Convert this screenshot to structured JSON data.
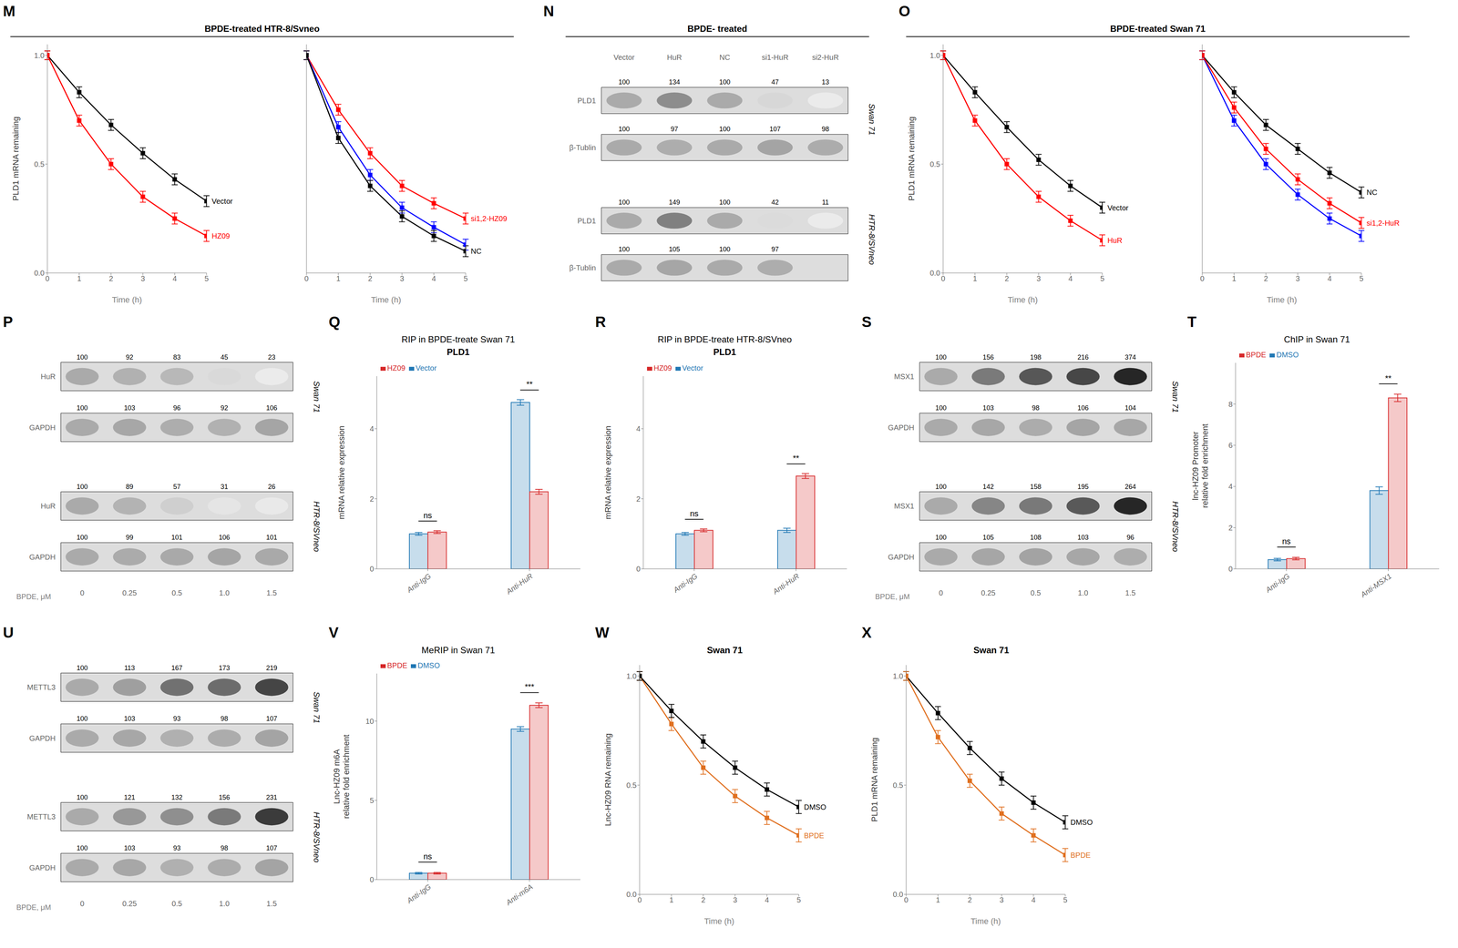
{
  "chart_data": [
    {
      "panel": "M",
      "type": "group",
      "title": "BPDE-treated HTR-8/Svneo",
      "charts": [
        {
          "type": "line",
          "marker": "square",
          "grid": false,
          "xlabel": "Time (h)",
          "ylabel": "PLD1 mRNA remaining",
          "xlim": [
            0,
            5
          ],
          "ylim": [
            0.0,
            1.05
          ],
          "xticks": [
            0,
            1,
            2,
            3,
            4,
            5
          ],
          "yticks": [
            {
              "value": 0,
              "label": "0.0"
            },
            0.5,
            {
              "value": 1,
              "label": "1.0"
            }
          ],
          "x": [
            0,
            1,
            2,
            3,
            4,
            5
          ],
          "series": [
            {
              "name": "Vector",
              "color": "black",
              "values": [
                1.0,
                0.83,
                0.68,
                0.55,
                0.43,
                0.33
              ],
              "errors": [
                0.02,
                0.025,
                0.025,
                0.025,
                0.025,
                0.025
              ]
            },
            {
              "name": "HZ09",
              "color": "red",
              "values": [
                1.0,
                0.7,
                0.5,
                0.35,
                0.25,
                0.17
              ],
              "errors": [
                0.02,
                0.025,
                0.025,
                0.025,
                0.025,
                0.025
              ]
            }
          ]
        },
        {
          "type": "line",
          "marker": "square",
          "grid": false,
          "tick_labels": "x",
          "xlabel": "Time (h)",
          "xlim": [
            0,
            5
          ],
          "ylim": [
            0.0,
            1.05
          ],
          "xticks": [
            0,
            1,
            2,
            3,
            4,
            5
          ],
          "yticks": [
            {
              "value": 0,
              "label": "0.0"
            },
            0.5,
            {
              "value": 1,
              "label": "1.0"
            }
          ],
          "x": [
            0,
            1,
            2,
            3,
            4,
            5
          ],
          "series": [
            {
              "name": "si1,2-HZ09",
              "color": "red",
              "values": [
                1.0,
                0.75,
                0.55,
                0.4,
                0.32,
                0.25
              ],
              "errors": [
                0.02,
                0.025,
                0.025,
                0.025,
                0.025,
                0.025
              ]
            },
            {
              "color": "blue",
              "values": [
                1.0,
                0.67,
                0.45,
                0.3,
                0.21,
                0.13
              ],
              "errors": [
                0.02,
                0.025,
                0.025,
                0.025,
                0.025,
                0.025
              ]
            },
            {
              "name": "NC",
              "color": "black",
              "values": [
                1.0,
                0.62,
                0.4,
                0.26,
                0.17,
                0.1
              ],
              "errors": [
                0.02,
                0.025,
                0.025,
                0.025,
                0.025,
                0.025
              ]
            }
          ]
        }
      ]
    },
    {
      "panel": "N",
      "type": "blot",
      "title": "BPDE- treated",
      "columns": [
        "Vector",
        "HuR",
        "NC",
        "si1-HuR",
        "si2-HuR"
      ],
      "groups": [
        {
          "name": "Swan 71",
          "rows": [
            {
              "label": "PLD1",
              "values": [
                100,
                134,
                100,
                47,
                13
              ]
            },
            {
              "label": "β-Tublin",
              "values": [
                100,
                97,
                100,
                107,
                98
              ]
            }
          ]
        },
        {
          "name": "HTR-8/SVneo",
          "rows": [
            {
              "label": "PLD1",
              "values": [
                100,
                149,
                100,
                42,
                11
              ]
            },
            {
              "label": "β-Tublin",
              "values": [
                100,
                105,
                100,
                97,
                null
              ]
            }
          ]
        }
      ]
    },
    {
      "panel": "O",
      "type": "group",
      "title": "BPDE-treated  Swan 71",
      "charts": [
        {
          "type": "line",
          "marker": "square",
          "grid": false,
          "xlabel": "Time (h)",
          "ylabel": "PLD1 mRNA remaining",
          "xlim": [
            0,
            5
          ],
          "ylim": [
            0.0,
            1.05
          ],
          "xticks": [
            0,
            1,
            2,
            3,
            4,
            5
          ],
          "yticks": [
            {
              "value": 0,
              "label": "0.0"
            },
            0.5,
            {
              "value": 1,
              "label": "1.0"
            }
          ],
          "x": [
            0,
            1,
            2,
            3,
            4,
            5
          ],
          "series": [
            {
              "name": "Vector",
              "color": "black",
              "values": [
                1.0,
                0.83,
                0.67,
                0.52,
                0.4,
                0.3
              ],
              "errors": [
                0.02,
                0.025,
                0.025,
                0.025,
                0.025,
                0.025
              ]
            },
            {
              "name": "HuR",
              "color": "red",
              "values": [
                1.0,
                0.7,
                0.5,
                0.35,
                0.24,
                0.15
              ],
              "errors": [
                0.02,
                0.025,
                0.025,
                0.025,
                0.025,
                0.025
              ]
            }
          ]
        },
        {
          "type": "line",
          "marker": "square",
          "grid": false,
          "tick_labels": "x",
          "xlabel": "Time (h)",
          "xlim": [
            0,
            5
          ],
          "ylim": [
            0.0,
            1.05
          ],
          "xticks": [
            0,
            1,
            2,
            3,
            4,
            5
          ],
          "yticks": [
            {
              "value": 0,
              "label": "0.0"
            },
            0.5,
            {
              "value": 1,
              "label": "1.0"
            }
          ],
          "x": [
            0,
            1,
            2,
            3,
            4,
            5
          ],
          "series": [
            {
              "name": "NC",
              "color": "black",
              "values": [
                1.0,
                0.83,
                0.68,
                0.57,
                0.46,
                0.37
              ],
              "errors": [
                0.02,
                0.025,
                0.025,
                0.025,
                0.025,
                0.025
              ]
            },
            {
              "color": "blue",
              "values": [
                1.0,
                0.7,
                0.5,
                0.36,
                0.25,
                0.17
              ],
              "errors": [
                0.02,
                0.025,
                0.025,
                0.025,
                0.025,
                0.025
              ]
            },
            {
              "name": "si1,2-HuR",
              "color": "red",
              "values": [
                1.0,
                0.76,
                0.57,
                0.43,
                0.32,
                0.23
              ],
              "errors": [
                0.02,
                0.025,
                0.025,
                0.025,
                0.025,
                0.025
              ]
            }
          ]
        }
      ]
    },
    {
      "panel": "P",
      "type": "blot",
      "xlabel": "BPDE, μM",
      "columns": [
        "0",
        "0.25",
        "0.5",
        "1.0",
        "1.5"
      ],
      "groups": [
        {
          "name": "Swan 71",
          "rows": [
            {
              "label": "HuR",
              "values": [
                100,
                92,
                83,
                45,
                23
              ]
            },
            {
              "label": "GAPDH",
              "values": [
                100,
                103,
                96,
                92,
                106
              ]
            }
          ]
        },
        {
          "name": "HTR-8/SVneo",
          "rows": [
            {
              "label": "HuR",
              "values": [
                100,
                89,
                57,
                31,
                26
              ]
            },
            {
              "label": "GAPDH",
              "values": [
                100,
                99,
                101,
                106,
                101
              ]
            }
          ]
        }
      ]
    },
    {
      "panel": "Q",
      "type": "bar",
      "title": "RIP in BPDE-treate Swan 71",
      "subtitle": "PLD1",
      "ylabel": "mRNA relative expression",
      "ylim": [
        0,
        5.5
      ],
      "yticks": [
        0,
        2,
        4
      ],
      "grid": false,
      "legend": "upper left",
      "categories": [
        "Anti-IgG",
        "Anti-HuR"
      ],
      "series": [
        {
          "name": "Vector",
          "color": "#1f77b4",
          "values": [
            1.0,
            4.75
          ],
          "errors": [
            0.04,
            0.08
          ]
        },
        {
          "name": "HZ09",
          "color": "#d62728",
          "values": [
            1.05,
            2.2
          ],
          "errors": [
            0.04,
            0.07
          ]
        }
      ],
      "annotations": [
        {
          "category": "Anti-IgG",
          "text": "ns"
        },
        {
          "category": "Anti-HuR",
          "text": "**"
        }
      ]
    },
    {
      "panel": "R",
      "type": "bar",
      "title": "RIP in BPDE-treate HTR-8/SVneo",
      "subtitle": "PLD1",
      "ylabel": "mRNA relative expression",
      "ylim": [
        0,
        5.5
      ],
      "yticks": [
        0,
        2,
        4
      ],
      "grid": false,
      "legend": "upper left",
      "categories": [
        "Anti-IgG",
        "Anti-HuR"
      ],
      "series": [
        {
          "name": "Vector",
          "color": "#1f77b4",
          "values": [
            1.0,
            1.1
          ],
          "errors": [
            0.04,
            0.06
          ]
        },
        {
          "name": "HZ09",
          "color": "#d62728",
          "values": [
            1.1,
            2.65
          ],
          "errors": [
            0.04,
            0.07
          ]
        }
      ],
      "annotations": [
        {
          "category": "Anti-IgG",
          "text": "ns"
        },
        {
          "category": "Anti-HuR",
          "text": "**"
        }
      ]
    },
    {
      "panel": "S",
      "type": "blot",
      "xlabel": "BPDE, μM",
      "columns": [
        "0",
        "0.25",
        "0.5",
        "1.0",
        "1.5"
      ],
      "groups": [
        {
          "name": "Swan 71",
          "rows": [
            {
              "label": "MSX1",
              "values": [
                100,
                156,
                198,
                216,
                374
              ]
            },
            {
              "label": "GAPDH",
              "values": [
                100,
                103,
                98,
                106,
                104
              ]
            }
          ]
        },
        {
          "name": "HTR-8/SVneo",
          "rows": [
            {
              "label": "MSX1",
              "values": [
                100,
                142,
                158,
                195,
                264
              ]
            },
            {
              "label": "GAPDH",
              "values": [
                100,
                105,
                108,
                103,
                96
              ]
            }
          ]
        }
      ]
    },
    {
      "panel": "T",
      "type": "bar",
      "title": "ChIP in Swan 71",
      "ylabel": "lnc-HZ09 Promoter\nrelative fold enrichment",
      "ylim": [
        0,
        10
      ],
      "yticks": [
        0,
        2,
        4,
        6,
        8
      ],
      "grid": false,
      "legend": "upper left",
      "categories": [
        "Anti-IgG",
        "Anti-MSX1"
      ],
      "series": [
        {
          "name": "DMSO",
          "color": "#1f77b4",
          "values": [
            0.45,
            3.8
          ],
          "errors": [
            0.06,
            0.18
          ]
        },
        {
          "name": "BPDE",
          "color": "#d62728",
          "values": [
            0.5,
            8.3
          ],
          "errors": [
            0.06,
            0.18
          ]
        }
      ],
      "annotations": [
        {
          "category": "Anti-IgG",
          "text": "ns"
        },
        {
          "category": "Anti-MSX1",
          "text": "**"
        }
      ]
    },
    {
      "panel": "U",
      "type": "blot",
      "xlabel": "BPDE, μM",
      "columns": [
        "0",
        "0.25",
        "0.5",
        "1.0",
        "1.5"
      ],
      "groups": [
        {
          "name": "Swan 71",
          "rows": [
            {
              "label": "METTL3",
              "values": [
                100,
                113,
                167,
                173,
                219
              ]
            },
            {
              "label": "GAPDH",
              "values": [
                100,
                103,
                93,
                98,
                107
              ]
            }
          ]
        },
        {
          "name": "HTR-8/SVneo",
          "rows": [
            {
              "label": "METTL3",
              "values": [
                100,
                121,
                132,
                156,
                231
              ]
            },
            {
              "label": "GAPDH",
              "values": [
                100,
                103,
                93,
                98,
                107
              ]
            }
          ]
        }
      ]
    },
    {
      "panel": "V",
      "type": "bar",
      "title": "MeRIP in Swan 71",
      "ylabel": "Lnc-HZ09 m6A\nrelative fold enrichment",
      "ylim": [
        0,
        13
      ],
      "yticks": [
        0,
        5,
        10
      ],
      "grid": false,
      "legend": "upper left",
      "categories": [
        "Anti-IgG",
        "Anti-m6A"
      ],
      "series": [
        {
          "name": "DMSO",
          "color": "#1f77b4",
          "values": [
            0.4,
            9.5
          ],
          "errors": [
            0.05,
            0.15
          ]
        },
        {
          "name": "BPDE",
          "color": "#d62728",
          "values": [
            0.4,
            11.0
          ],
          "errors": [
            0.05,
            0.15
          ]
        }
      ],
      "annotations": [
        {
          "category": "Anti-IgG",
          "text": "ns"
        },
        {
          "category": "Anti-m6A",
          "text": "***"
        }
      ]
    },
    {
      "panel": "W",
      "type": "line",
      "marker": "square",
      "grid": false,
      "title": "Swan 71",
      "xlabel": "Time (h)",
      "ylabel": "Lnc-HZ09 RNA remaining",
      "xlim": [
        0,
        5
      ],
      "ylim": [
        0.0,
        1.05
      ],
      "xticks": [
        0,
        1,
        2,
        3,
        4,
        5
      ],
      "yticks": [
        {
          "value": 0,
          "label": "0.0"
        },
        0.5,
        {
          "value": 1,
          "label": "1.0"
        }
      ],
      "x": [
        0,
        1,
        2,
        3,
        4,
        5
      ],
      "series": [
        {
          "name": "BPDE",
          "color": "#e07020",
          "values": [
            1.0,
            0.78,
            0.58,
            0.45,
            0.35,
            0.27
          ],
          "errors": [
            0.02,
            0.03,
            0.03,
            0.03,
            0.03,
            0.03
          ]
        },
        {
          "name": "DMSO",
          "color": "black",
          "values": [
            1.0,
            0.84,
            0.7,
            0.58,
            0.48,
            0.4
          ],
          "errors": [
            0.02,
            0.03,
            0.03,
            0.03,
            0.03,
            0.03
          ]
        }
      ]
    },
    {
      "panel": "X",
      "type": "line",
      "marker": "square",
      "grid": false,
      "title": "Swan 71",
      "xlabel": "Time (h)",
      "ylabel": "PLD1 mRNA remaining",
      "xlim": [
        0,
        5
      ],
      "ylim": [
        0.0,
        1.05
      ],
      "xticks": [
        0,
        1,
        2,
        3,
        4,
        5
      ],
      "yticks": [
        {
          "value": 0,
          "label": "0.0"
        },
        0.5,
        {
          "value": 1,
          "label": "1.0"
        }
      ],
      "x": [
        0,
        1,
        2,
        3,
        4,
        5
      ],
      "series": [
        {
          "name": "DMSO",
          "color": "black",
          "values": [
            1.0,
            0.83,
            0.67,
            0.53,
            0.42,
            0.33
          ],
          "errors": [
            0.02,
            0.03,
            0.03,
            0.03,
            0.03,
            0.03
          ]
        },
        {
          "name": "BPDE",
          "color": "#e07020",
          "values": [
            1.0,
            0.72,
            0.52,
            0.37,
            0.27,
            0.18
          ],
          "errors": [
            0.02,
            0.03,
            0.03,
            0.03,
            0.03,
            0.03
          ]
        }
      ]
    }
  ]
}
